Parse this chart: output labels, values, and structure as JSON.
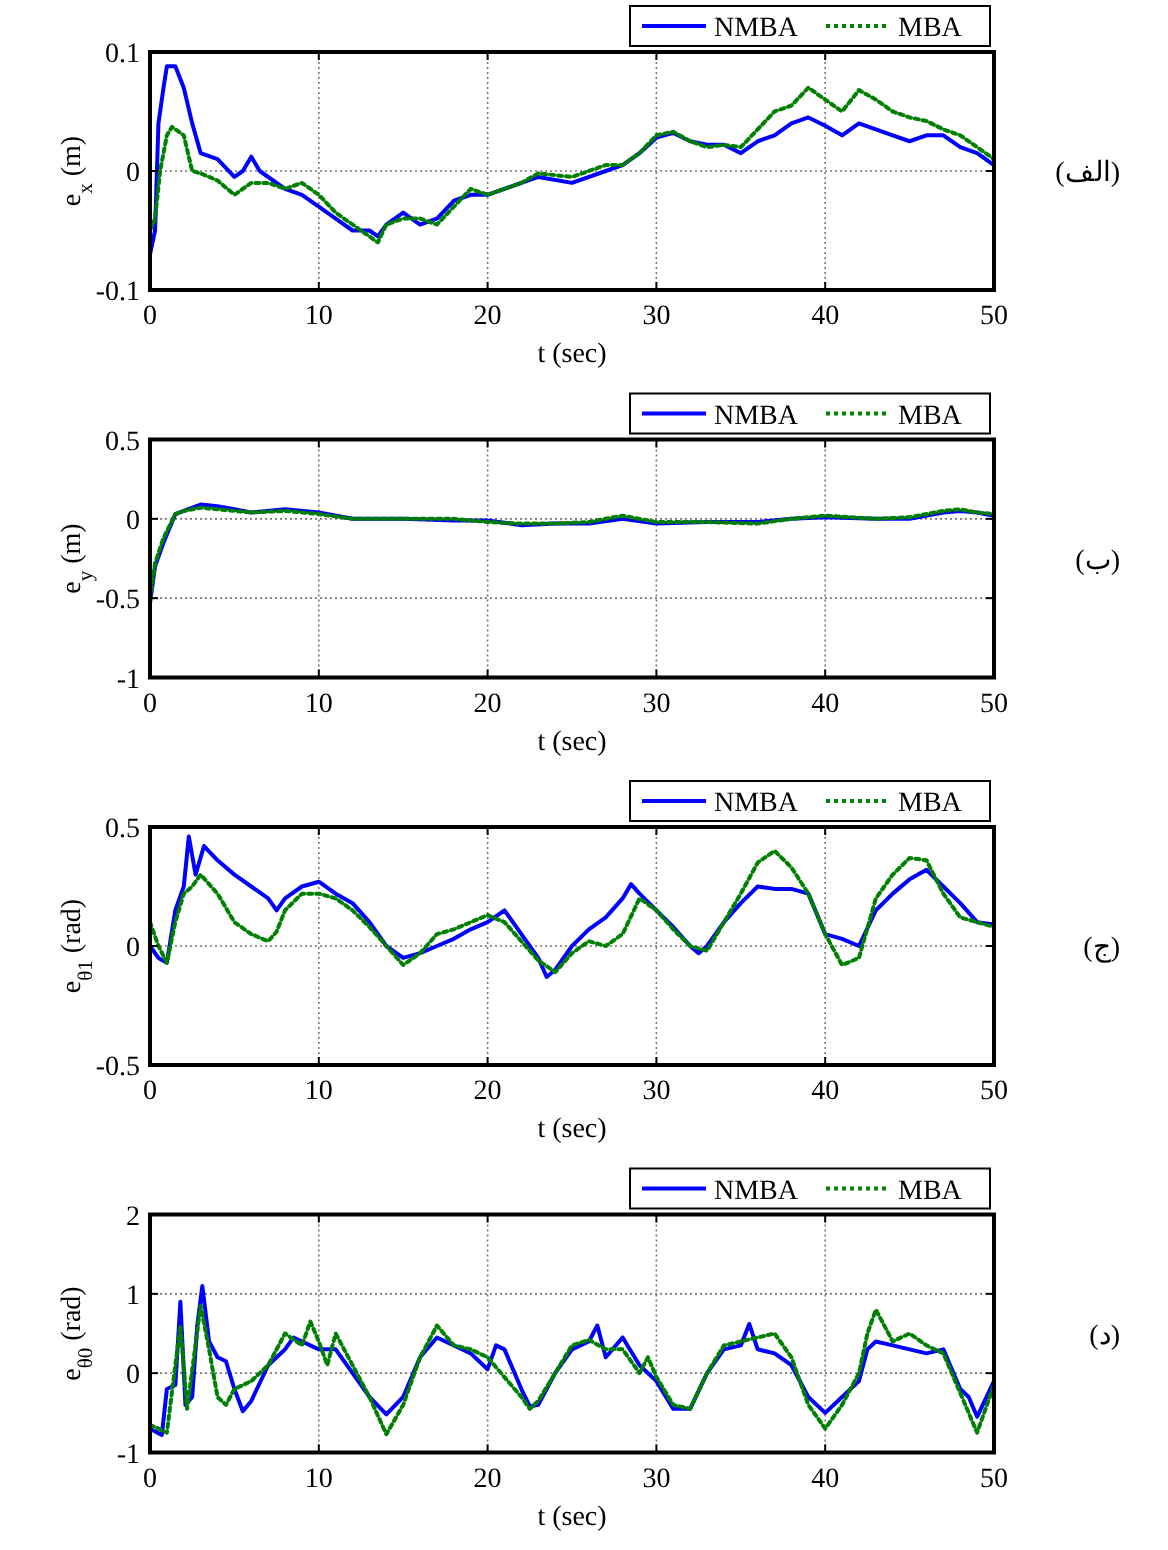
{
  "chart_data": [
    {
      "type": "line",
      "xlabel": "t (sec)",
      "ylabel": "e$_{x}$ (m)",
      "xlim": [
        0,
        50
      ],
      "xticks": [
        0,
        10,
        20,
        30,
        40,
        50
      ],
      "ylim": [
        -0.1,
        0.1
      ],
      "yticks": [
        -0.1,
        0,
        0.1
      ],
      "grid": true,
      "legend": "top right",
      "annotations": [
        "(الف)"
      ],
      "series": [
        {
          "name": "NMBA",
          "color": "#0000ff",
          "line_style": "solid",
          "x": [
            0,
            0.3,
            0.5,
            0.8,
            1,
            1.5,
            2,
            2.5,
            3,
            4,
            5,
            5.5,
            6,
            6.5,
            8,
            9,
            10,
            11,
            12,
            13,
            13.5,
            14,
            15,
            16,
            17,
            18,
            19,
            20,
            22,
            23,
            25,
            27,
            28,
            29,
            30,
            31,
            32,
            33,
            34,
            35,
            36,
            37,
            38,
            39,
            40,
            41,
            42,
            43,
            44,
            45,
            46,
            47,
            48,
            49,
            50
          ],
          "values": [
            -0.07,
            -0.05,
            0.04,
            0.07,
            0.088,
            0.088,
            0.07,
            0.04,
            0.015,
            0.01,
            -0.005,
            0,
            0.012,
            0,
            -0.015,
            -0.02,
            -0.03,
            -0.04,
            -0.05,
            -0.05,
            -0.055,
            -0.045,
            -0.035,
            -0.045,
            -0.04,
            -0.025,
            -0.02,
            -0.02,
            -0.01,
            -0.005,
            -0.01,
            0,
            0.005,
            0.015,
            0.028,
            0.032,
            0.025,
            0.022,
            0.022,
            0.015,
            0.025,
            0.03,
            0.04,
            0.045,
            0.038,
            0.03,
            0.04,
            0.035,
            0.03,
            0.025,
            0.03,
            0.03,
            0.02,
            0.015,
            0.005
          ]
        },
        {
          "name": "MBA",
          "color": "#008000",
          "line_style": "dotted",
          "x": [
            0,
            0.3,
            0.6,
            1,
            1.3,
            2,
            2.5,
            3,
            4,
            5,
            6,
            7,
            8,
            9,
            10,
            11,
            12,
            13,
            13.5,
            14,
            15,
            16,
            17,
            18,
            19,
            20,
            22,
            23,
            25,
            27,
            28,
            29,
            30,
            31,
            32,
            33,
            34,
            35,
            36,
            37,
            38,
            39,
            40,
            41,
            42,
            43,
            44,
            45,
            46,
            47,
            48,
            49,
            50
          ],
          "values": [
            -0.05,
            -0.04,
            0,
            0.03,
            0.037,
            0.03,
            0,
            -0.002,
            -0.008,
            -0.02,
            -0.01,
            -0.01,
            -0.015,
            -0.01,
            -0.02,
            -0.035,
            -0.045,
            -0.055,
            -0.06,
            -0.045,
            -0.04,
            -0.04,
            -0.045,
            -0.03,
            -0.015,
            -0.02,
            -0.01,
            -0.002,
            -0.005,
            0.005,
            0.005,
            0.015,
            0.03,
            0.033,
            0.025,
            0.02,
            0.022,
            0.02,
            0.035,
            0.05,
            0.055,
            0.07,
            0.06,
            0.05,
            0.068,
            0.06,
            0.05,
            0.045,
            0.042,
            0.035,
            0.03,
            0.02,
            0.01
          ]
        }
      ]
    },
    {
      "type": "line",
      "xlabel": "t (sec)",
      "ylabel": "e$_{y}$ (m)",
      "xlim": [
        0,
        50
      ],
      "xticks": [
        0,
        10,
        20,
        30,
        40,
        50
      ],
      "ylim": [
        -1,
        0.5
      ],
      "yticks": [
        -1,
        -0.5,
        0,
        0.5
      ],
      "grid": true,
      "legend": "top right",
      "annotations": [
        "(ب)"
      ],
      "series": [
        {
          "name": "NMBA",
          "color": "#0000ff",
          "line_style": "solid",
          "x": [
            0,
            0.3,
            0.8,
            1.5,
            2,
            3,
            4,
            5,
            6,
            8,
            10,
            12,
            15,
            18,
            20,
            22,
            24,
            26,
            28,
            30,
            33,
            36,
            38,
            40,
            43,
            45,
            47,
            48,
            49,
            50
          ],
          "values": [
            -0.53,
            -0.3,
            -0.15,
            0.03,
            0.05,
            0.09,
            0.08,
            0.06,
            0.04,
            0.06,
            0.04,
            0,
            0,
            -0.01,
            -0.01,
            -0.04,
            -0.03,
            -0.03,
            0,
            -0.03,
            -0.02,
            -0.02,
            0,
            0.01,
            0,
            0,
            0.04,
            0.05,
            0.04,
            0.02
          ]
        },
        {
          "name": "MBA",
          "color": "#008000",
          "line_style": "dotted",
          "x": [
            0,
            0.3,
            0.8,
            1.5,
            2,
            3,
            4,
            5,
            6,
            8,
            10,
            12,
            15,
            18,
            20,
            22,
            24,
            26,
            28,
            30,
            33,
            36,
            38,
            40,
            43,
            45,
            47,
            48,
            49,
            50
          ],
          "values": [
            -0.5,
            -0.28,
            -0.12,
            0.03,
            0.05,
            0.07,
            0.06,
            0.05,
            0.04,
            0.05,
            0.03,
            0,
            0,
            0,
            -0.02,
            -0.03,
            -0.03,
            -0.02,
            0.02,
            -0.02,
            -0.02,
            -0.03,
            0,
            0.02,
            0,
            0.01,
            0.05,
            0.06,
            0.04,
            0.03
          ]
        }
      ]
    },
    {
      "type": "line",
      "xlabel": "t (sec)",
      "ylabel": "e$_{θ1}$ (rad)",
      "xlim": [
        0,
        50
      ],
      "xticks": [
        0,
        10,
        20,
        30,
        40,
        50
      ],
      "ylim": [
        -0.5,
        0.5
      ],
      "yticks": [
        -0.5,
        0,
        0.5
      ],
      "grid": true,
      "legend": "top right",
      "annotations": [
        "(ج)"
      ],
      "series": [
        {
          "name": "NMBA",
          "color": "#0000ff",
          "line_style": "solid",
          "x": [
            0,
            0.5,
            1,
            1.5,
            2,
            2.3,
            2.7,
            3.2,
            4,
            5,
            6,
            7,
            7.5,
            8,
            9,
            10,
            11,
            12,
            13,
            14,
            15,
            16,
            17,
            18,
            19,
            20,
            21,
            22,
            23,
            23.5,
            24,
            25,
            26,
            27,
            28,
            28.5,
            29,
            30,
            31,
            32,
            32.5,
            33,
            34,
            35,
            36,
            37,
            38,
            39,
            40,
            41,
            42,
            43,
            44,
            45,
            46,
            47,
            48,
            49,
            50
          ],
          "values": [
            0,
            -0.05,
            -0.07,
            0.15,
            0.25,
            0.46,
            0.3,
            0.42,
            0.36,
            0.3,
            0.25,
            0.2,
            0.15,
            0.2,
            0.25,
            0.27,
            0.22,
            0.18,
            0.1,
            0,
            -0.05,
            -0.03,
            0,
            0.03,
            0.07,
            0.1,
            0.15,
            0.05,
            -0.05,
            -0.13,
            -0.1,
            0,
            0.07,
            0.12,
            0.2,
            0.26,
            0.22,
            0.15,
            0.08,
            0,
            -0.03,
            0,
            0.1,
            0.18,
            0.25,
            0.24,
            0.24,
            0.22,
            0.05,
            0.03,
            0,
            0.15,
            0.22,
            0.28,
            0.32,
            0.25,
            0.18,
            0.1,
            0.09
          ]
        },
        {
          "name": "MBA",
          "color": "#008000",
          "line_style": "dotted",
          "x": [
            0,
            0.5,
            1,
            1.5,
            2,
            2.5,
            3,
            4,
            5,
            6,
            7,
            7.5,
            8,
            9,
            10,
            11,
            12,
            13,
            14,
            15,
            16,
            17,
            18,
            19,
            20,
            21,
            22,
            23,
            24,
            25,
            26,
            27,
            28,
            29,
            30,
            31,
            32,
            33,
            34,
            35,
            36,
            37,
            38,
            39,
            40,
            41,
            42,
            43,
            44,
            45,
            46,
            47,
            48,
            49,
            50
          ],
          "values": [
            0.1,
            0,
            -0.07,
            0.1,
            0.22,
            0.25,
            0.3,
            0.22,
            0.1,
            0.05,
            0.02,
            0.06,
            0.15,
            0.22,
            0.22,
            0.2,
            0.15,
            0.08,
            0,
            -0.08,
            -0.03,
            0.05,
            0.07,
            0.1,
            0.13,
            0.1,
            0.02,
            -0.06,
            -0.11,
            -0.03,
            0.02,
            0,
            0.05,
            0.2,
            0.15,
            0.07,
            0,
            -0.02,
            0.1,
            0.22,
            0.35,
            0.4,
            0.33,
            0.22,
            0.05,
            -0.08,
            -0.05,
            0.2,
            0.3,
            0.37,
            0.36,
            0.22,
            0.12,
            0.1,
            0.08
          ]
        }
      ]
    },
    {
      "type": "line",
      "xlabel": "t (sec)",
      "ylabel": "e$_{θ0}$ (rad)",
      "xlim": [
        0,
        50
      ],
      "xticks": [
        0,
        10,
        20,
        30,
        40,
        50
      ],
      "ylim": [
        -1,
        2
      ],
      "yticks": [
        -1,
        0,
        1,
        2
      ],
      "grid": true,
      "legend": "top right",
      "annotations": [
        "(د)"
      ],
      "series": [
        {
          "name": "NMBA",
          "color": "#0000ff",
          "line_style": "solid",
          "x": [
            0,
            0.7,
            1,
            1.5,
            1.8,
            2.1,
            2.5,
            2.8,
            3.1,
            3.5,
            4,
            4.5,
            5,
            5.5,
            6,
            7,
            8,
            8.5,
            9,
            10,
            11,
            12,
            13,
            14,
            15,
            16,
            17,
            18,
            19,
            20,
            20.5,
            21,
            22,
            22.5,
            23,
            24,
            25,
            26,
            26.5,
            27,
            28,
            29,
            30,
            31,
            32,
            33,
            34,
            35,
            35.5,
            36,
            37,
            38,
            39,
            40,
            41,
            42,
            42.5,
            43,
            44,
            45,
            46,
            47,
            48,
            48.5,
            49,
            50
          ],
          "values": [
            -0.7,
            -0.78,
            -0.2,
            -0.15,
            0.9,
            -0.4,
            -0.3,
            0.6,
            1.1,
            0.4,
            0.2,
            0.15,
            -0.2,
            -0.48,
            -0.35,
            0.1,
            0.3,
            0.45,
            0.4,
            0.3,
            0.3,
            0,
            -0.3,
            -0.52,
            -0.3,
            0.2,
            0.45,
            0.35,
            0.25,
            0.05,
            0.35,
            0.3,
            -0.2,
            -0.42,
            -0.4,
            0,
            0.3,
            0.4,
            0.6,
            0.2,
            0.45,
            0.1,
            -0.1,
            -0.45,
            -0.45,
            0,
            0.3,
            0.35,
            0.62,
            0.3,
            0.25,
            0.1,
            -0.3,
            -0.5,
            -0.3,
            -0.1,
            0.3,
            0.4,
            0.35,
            0.3,
            0.25,
            0.3,
            -0.2,
            -0.3,
            -0.55,
            -0.1
          ]
        },
        {
          "name": "MBA",
          "color": "#008000",
          "line_style": "dotted",
          "x": [
            0,
            1,
            1.5,
            1.8,
            2.2,
            2.6,
            3,
            3.5,
            4,
            4.5,
            5,
            6,
            7,
            8,
            9,
            9.5,
            10,
            10.5,
            11,
            12,
            13,
            14,
            15,
            16,
            17,
            18,
            19,
            20,
            21,
            22,
            22.5,
            23,
            24,
            25,
            26,
            27,
            28,
            29,
            29.5,
            30,
            31,
            32,
            33,
            34,
            35,
            36,
            37,
            38,
            39,
            40,
            41,
            42,
            42.5,
            43,
            44,
            45,
            46,
            47,
            48,
            49,
            50
          ],
          "values": [
            -0.65,
            -0.75,
            0.1,
            0.6,
            -0.45,
            0.2,
            0.85,
            0.3,
            -0.3,
            -0.4,
            -0.2,
            -0.1,
            0.1,
            0.5,
            0.35,
            0.65,
            0.4,
            0.1,
            0.5,
            0.1,
            -0.3,
            -0.77,
            -0.4,
            0.2,
            0.6,
            0.35,
            0.3,
            0.2,
            -0.05,
            -0.3,
            -0.45,
            -0.35,
            0,
            0.35,
            0.42,
            0.3,
            0.3,
            0,
            0.2,
            -0.05,
            -0.4,
            -0.45,
            0,
            0.35,
            0.4,
            0.45,
            0.5,
            0.2,
            -0.4,
            -0.7,
            -0.4,
            0,
            0.5,
            0.8,
            0.4,
            0.5,
            0.35,
            0.25,
            -0.25,
            -0.75,
            -0.15
          ]
        }
      ]
    }
  ]
}
